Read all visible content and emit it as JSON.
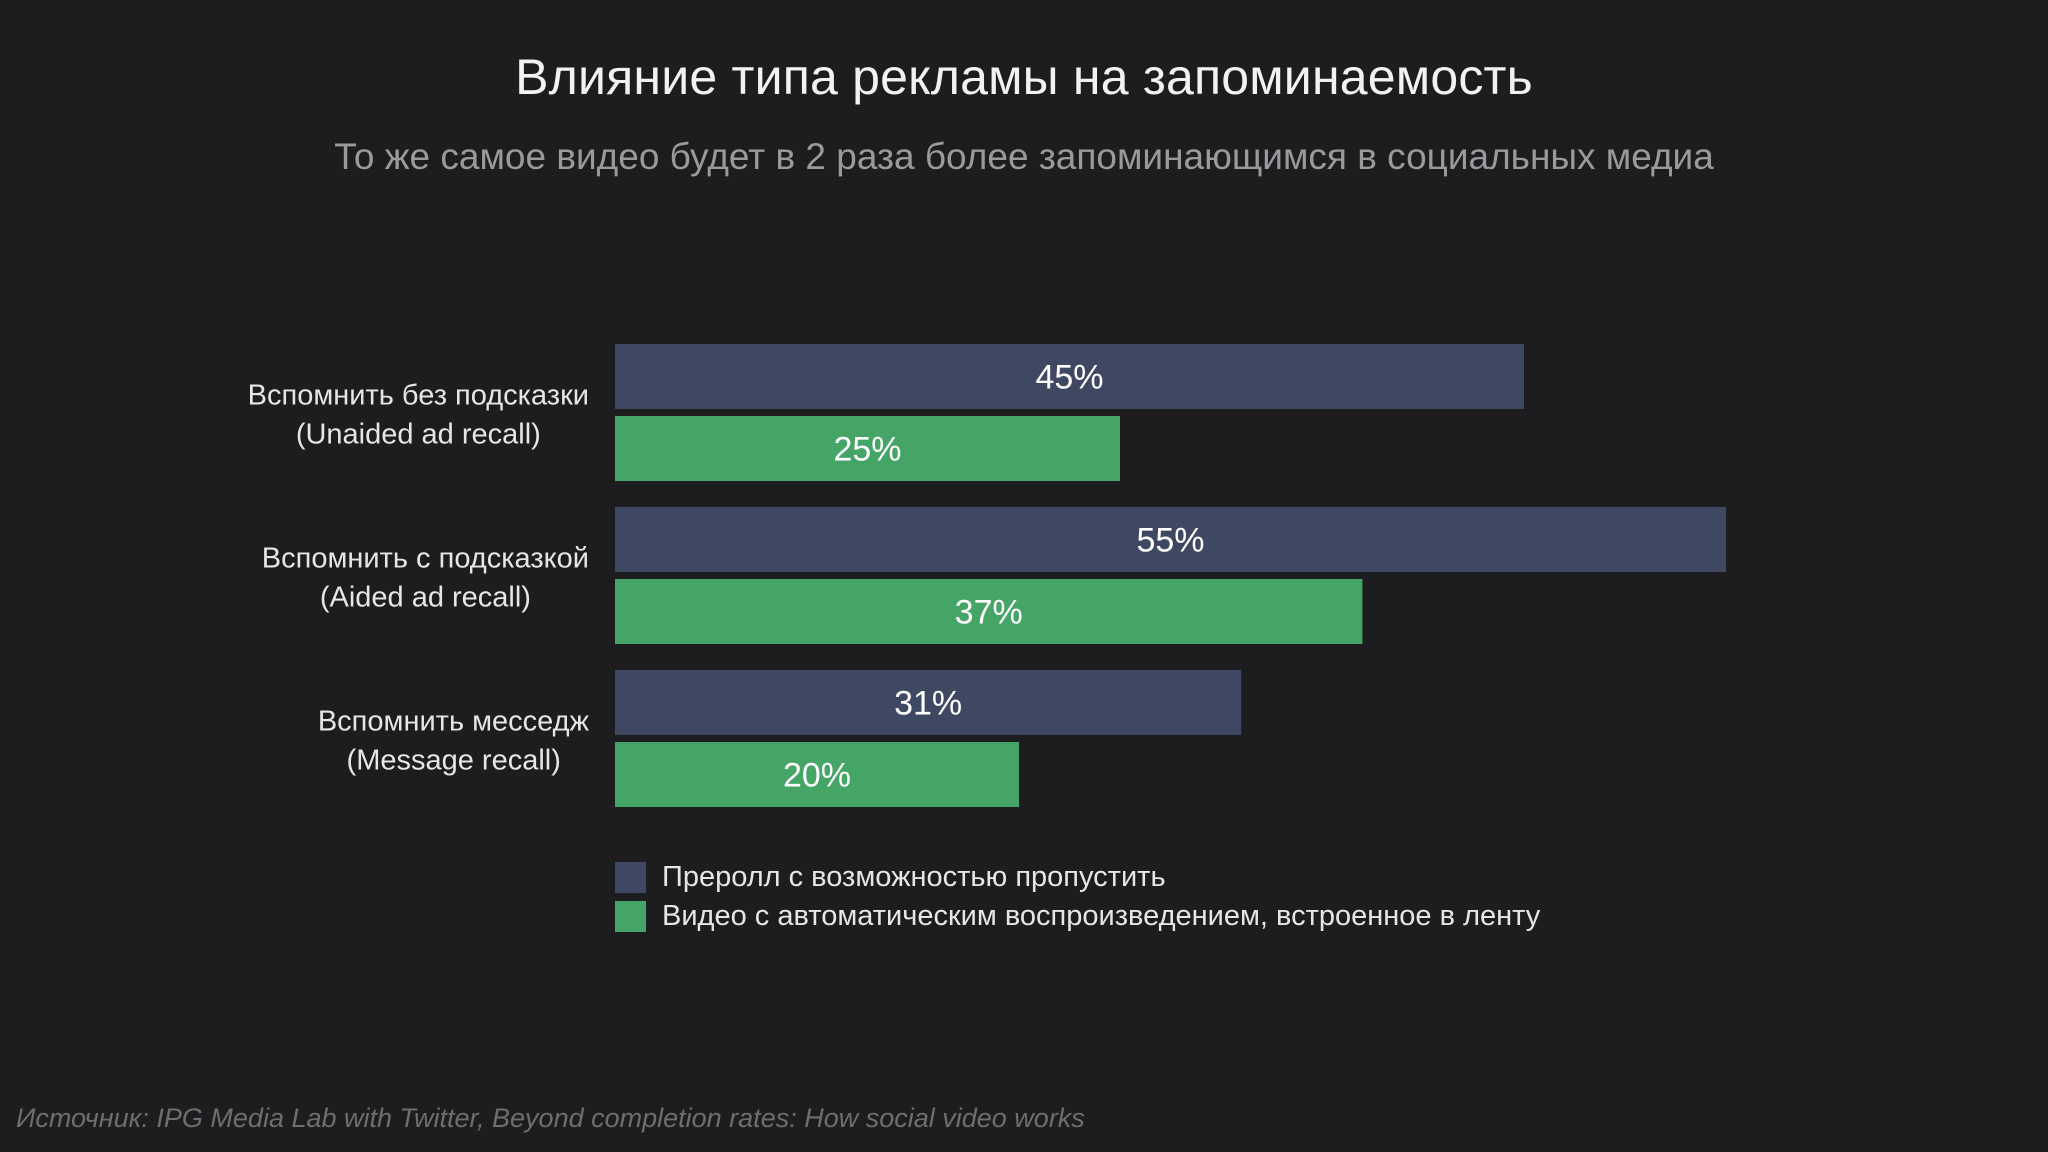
{
  "slide": {
    "title": "Влияние типа рекламы на запоминаемость",
    "subtitle": "То же самое видео будет в 2 раза более запоминающимся в социальных медиа",
    "source": "Источник: IPG Media Lab with Twitter, Beyond completion rates: How social video works"
  },
  "chart_data": {
    "type": "bar",
    "orientation": "horizontal",
    "title": "Влияние типа рекламы на запоминаемость",
    "subtitle": "То же самое видео будет в 2 раза более запоминающимся в социальных медиа",
    "categories": [
      [
        "Вспомнить без подсказки",
        "(Unaided ad recall)"
      ],
      [
        "Вспомнить с подсказкой",
        "(Aided ad recall)"
      ],
      [
        "Вспомнить месседж",
        "(Message recall)"
      ]
    ],
    "series": [
      {
        "name": "Преролл с возможностью пропустить",
        "color": "#3e4862",
        "values": [
          45,
          55,
          31
        ],
        "labels": [
          "45%",
          "55%",
          "31%"
        ]
      },
      {
        "name": "Видео с автоматическим воспроизведением, встроенное в ленту",
        "color": "#45a566",
        "values": [
          25,
          37,
          20
        ],
        "labels": [
          "25%",
          "37%",
          "20%"
        ]
      }
    ],
    "unit": "%",
    "xlim": [
      0,
      55
    ],
    "grid": false,
    "legend_position": "bottom-left"
  }
}
